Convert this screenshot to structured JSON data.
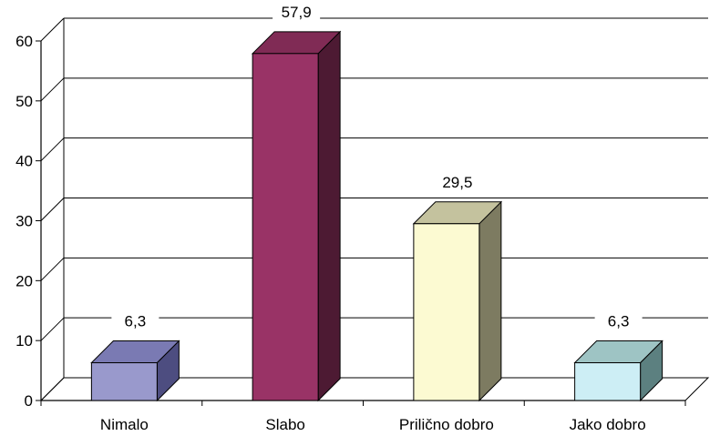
{
  "chart_data": {
    "type": "bar",
    "style": "3d-column",
    "categories": [
      "Nimalo",
      "Slabo",
      "Prilično dobro",
      "Jako dobro"
    ],
    "values": [
      6.3,
      57.9,
      29.5,
      6.3
    ],
    "value_labels": [
      "6,3",
      "57,9",
      "29,5",
      "6,3"
    ],
    "title": "",
    "xlabel": "",
    "ylabel": "",
    "ylim": [
      0,
      60
    ],
    "yticks": [
      0,
      10,
      20,
      30,
      40,
      50,
      60
    ],
    "grid": true,
    "legend": "none",
    "colors": {
      "bars": [
        {
          "front": "#9999cc",
          "side": "#4d4d80",
          "top": "#7a7ab3"
        },
        {
          "front": "#993366",
          "side": "#4d1a33",
          "top": "#802b55"
        },
        {
          "front": "#fcfad2",
          "side": "#7d7b61",
          "top": "#c4c29e"
        },
        {
          "front": "#cdeef5",
          "side": "#5c8080",
          "top": "#9ec4c4"
        }
      ],
      "grid": "#000000",
      "axis": "#000000"
    }
  }
}
